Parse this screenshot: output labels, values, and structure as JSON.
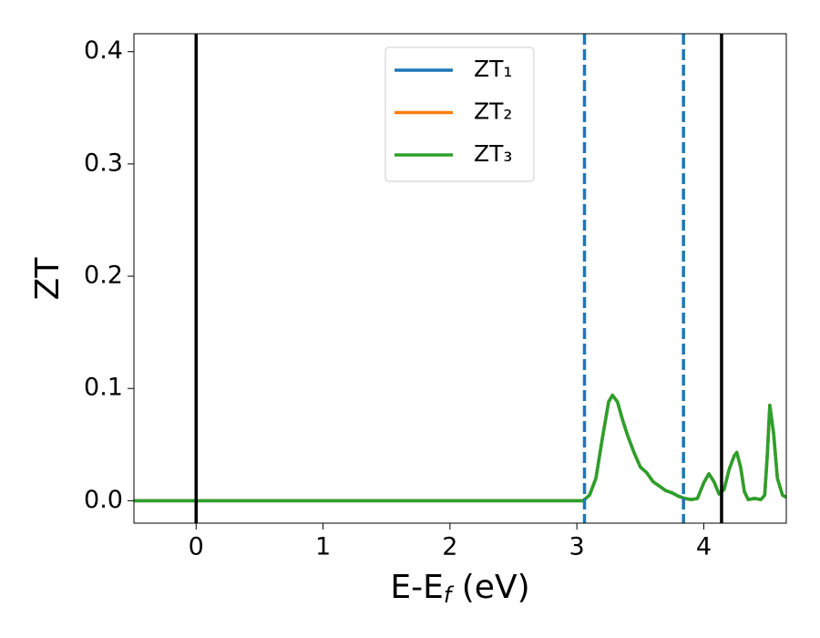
{
  "chart_data": {
    "type": "line",
    "xlabel": [
      "E-E",
      "f",
      " (eV)"
    ],
    "ylabel": "ZT",
    "xlim": [
      -0.49,
      4.65
    ],
    "ylim": [
      -0.02,
      0.416
    ],
    "xticks": [
      0,
      1,
      2,
      3,
      4
    ],
    "yticks": [
      {
        "value": 0,
        "label": "0.0"
      },
      0.1,
      0.2,
      0.3,
      0.4
    ],
    "legend": "upper center",
    "x": [
      -0.49,
      3.0,
      3.05,
      3.1,
      3.15,
      3.2,
      3.25,
      3.28,
      3.32,
      3.36,
      3.4,
      3.45,
      3.5,
      3.55,
      3.6,
      3.65,
      3.7,
      3.75,
      3.8,
      3.85,
      3.9,
      3.95,
      4.0,
      4.04,
      4.08,
      4.12,
      4.16,
      4.2,
      4.24,
      4.26,
      4.29,
      4.32,
      4.35,
      4.4,
      4.45,
      4.48,
      4.5,
      4.52,
      4.55,
      4.58,
      4.62,
      4.65
    ],
    "series": [
      {
        "name": "ZT₁",
        "color": "#1f77b4",
        "values": [
          0,
          0,
          0,
          0.005,
          0.02,
          0.055,
          0.088,
          0.094,
          0.088,
          0.072,
          0.058,
          0.043,
          0.03,
          0.025,
          0.017,
          0.013,
          0.009,
          0.007,
          0.004,
          0.002,
          0.001,
          0.002,
          0.016,
          0.024,
          0.017,
          0.006,
          0.01,
          0.028,
          0.04,
          0.043,
          0.03,
          0.008,
          0.001,
          0.002,
          0.001,
          0.005,
          0.04,
          0.085,
          0.06,
          0.02,
          0.005,
          0.003
        ]
      },
      {
        "name": "ZT₂",
        "color": "#ff7f0e",
        "values": [
          0,
          0,
          0,
          0.005,
          0.02,
          0.055,
          0.088,
          0.094,
          0.088,
          0.072,
          0.058,
          0.043,
          0.03,
          0.025,
          0.017,
          0.013,
          0.009,
          0.007,
          0.004,
          0.002,
          0.001,
          0.002,
          0.016,
          0.024,
          0.017,
          0.006,
          0.01,
          0.028,
          0.04,
          0.043,
          0.03,
          0.008,
          0.001,
          0.002,
          0.001,
          0.005,
          0.04,
          0.085,
          0.06,
          0.02,
          0.005,
          0.003
        ]
      },
      {
        "name": "ZT₃",
        "color": "#2ca02c",
        "values": [
          0,
          0,
          0,
          0.005,
          0.02,
          0.055,
          0.088,
          0.094,
          0.088,
          0.072,
          0.058,
          0.043,
          0.03,
          0.025,
          0.017,
          0.013,
          0.009,
          0.007,
          0.004,
          0.002,
          0.001,
          0.002,
          0.016,
          0.024,
          0.017,
          0.006,
          0.01,
          0.028,
          0.04,
          0.043,
          0.03,
          0.008,
          0.001,
          0.002,
          0.001,
          0.005,
          0.04,
          0.085,
          0.06,
          0.02,
          0.005,
          0.003
        ]
      }
    ],
    "vlines": [
      {
        "x": 0,
        "color": "#000000",
        "style": "solid"
      },
      {
        "x": 3.06,
        "color": "#1f77b4",
        "style": "dashed"
      },
      {
        "x": 3.84,
        "color": "#1f77b4",
        "style": "dashed"
      },
      {
        "x": 4.14,
        "color": "#000000",
        "style": "solid"
      }
    ]
  }
}
